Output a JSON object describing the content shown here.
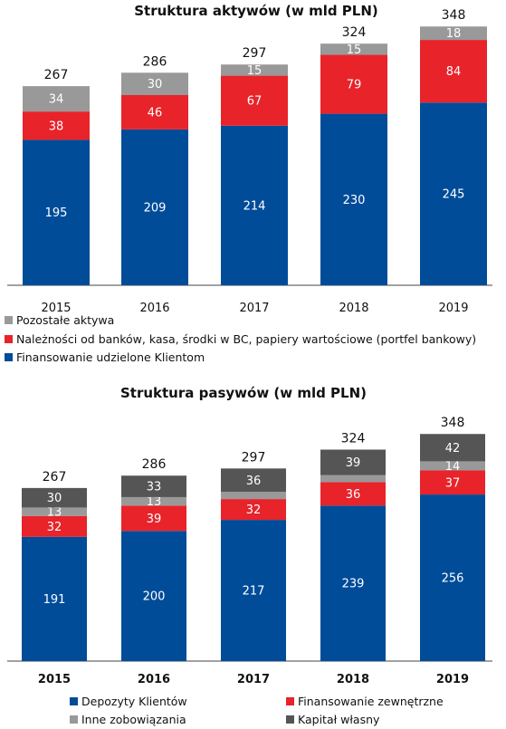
{
  "chart_data": [
    {
      "type": "bar",
      "stacked": true,
      "title": "Struktura aktywów (w mld PLN)",
      "categories": [
        "2015",
        "2016",
        "2017",
        "2018",
        "2019"
      ],
      "totals": [
        "267",
        "286",
        "297",
        "324",
        "348"
      ],
      "series": [
        {
          "name": "Finansowanie udzielone Klientom",
          "color": "#004c99",
          "values": [
            195,
            209,
            214,
            230,
            245
          ]
        },
        {
          "name": "Należności od banków, kasa, środki w BC, papiery wartościowe (portfel bankowy)",
          "color": "#e8232a",
          "values": [
            38,
            46,
            67,
            79,
            84
          ]
        },
        {
          "name": "Pozostałe aktywa",
          "color": "#999999",
          "values": [
            34,
            30,
            15,
            15,
            18
          ]
        }
      ],
      "legend_order": [
        2,
        1,
        0
      ],
      "ylim": [
        0,
        360
      ],
      "grid": false,
      "legend_position": "bottom"
    },
    {
      "type": "bar",
      "stacked": true,
      "title": "Struktura pasywów (w mld PLN)",
      "categories": [
        "2015",
        "2016",
        "2017",
        "2018",
        "2019"
      ],
      "totals": [
        "267",
        "286",
        "297",
        "324",
        "348"
      ],
      "series": [
        {
          "name": "Depozyty Klientów",
          "color": "#004c99",
          "values": [
            191,
            200,
            217,
            239,
            256
          ]
        },
        {
          "name": "Finansowanie zewnętrzne",
          "color": "#e8232a",
          "values": [
            32,
            39,
            32,
            36,
            37
          ]
        },
        {
          "name": "Inne zobowiązania",
          "color": "#999999",
          "values": [
            13,
            13,
            11,
            11,
            14
          ]
        },
        {
          "name": "Kapitał własny",
          "color": "#555555",
          "values": [
            30,
            33,
            36,
            39,
            42
          ]
        }
      ],
      "legend_order": [
        0,
        1,
        2,
        3
      ],
      "ylim": [
        0,
        360
      ],
      "grid": false,
      "legend_position": "bottom"
    }
  ]
}
